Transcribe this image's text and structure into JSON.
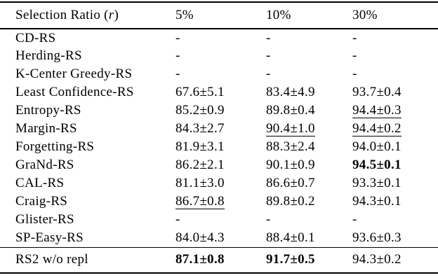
{
  "table": {
    "header": {
      "label_pre": "Selection Ratio (",
      "label_var": "r",
      "label_post": ")",
      "columns": [
        "5%",
        "10%",
        "30%"
      ]
    },
    "rows": [
      {
        "method": "CD-RS",
        "cells": [
          {
            "text": "-",
            "style": "normal"
          },
          {
            "text": "-",
            "style": "normal"
          },
          {
            "text": "-",
            "style": "normal"
          }
        ]
      },
      {
        "method": "Herding-RS",
        "cells": [
          {
            "text": "-",
            "style": "normal"
          },
          {
            "text": "-",
            "style": "normal"
          },
          {
            "text": "-",
            "style": "normal"
          }
        ]
      },
      {
        "method": "K-Center Greedy-RS",
        "cells": [
          {
            "text": "-",
            "style": "normal"
          },
          {
            "text": "-",
            "style": "normal"
          },
          {
            "text": "-",
            "style": "normal"
          }
        ]
      },
      {
        "method": "Least Confidence-RS",
        "cells": [
          {
            "text": "67.6±5.1",
            "style": "normal"
          },
          {
            "text": "83.4±4.9",
            "style": "normal"
          },
          {
            "text": "93.7±0.4",
            "style": "normal"
          }
        ]
      },
      {
        "method": "Entropy-RS",
        "cells": [
          {
            "text": "85.2±0.9",
            "style": "normal"
          },
          {
            "text": "89.8±0.4",
            "style": "normal"
          },
          {
            "text": "94.4±0.3",
            "style": "underline"
          }
        ]
      },
      {
        "method": "Margin-RS",
        "cells": [
          {
            "text": "84.3±2.7",
            "style": "normal"
          },
          {
            "text": "90.4±1.0",
            "style": "underline"
          },
          {
            "text": "94.4±0.2",
            "style": "underline"
          }
        ]
      },
      {
        "method": "Forgetting-RS",
        "cells": [
          {
            "text": "81.9±3.1",
            "style": "normal"
          },
          {
            "text": "88.3±2.4",
            "style": "normal"
          },
          {
            "text": "94.0±0.1",
            "style": "normal"
          }
        ]
      },
      {
        "method": "GraNd-RS",
        "cells": [
          {
            "text": "86.2±2.1",
            "style": "normal"
          },
          {
            "text": "90.1±0.9",
            "style": "normal"
          },
          {
            "text": "94.5±0.1",
            "style": "bold"
          }
        ]
      },
      {
        "method": "CAL-RS",
        "cells": [
          {
            "text": "81.1±3.0",
            "style": "normal"
          },
          {
            "text": "86.6±0.7",
            "style": "normal"
          },
          {
            "text": "93.3±0.1",
            "style": "normal"
          }
        ]
      },
      {
        "method": "Craig-RS",
        "cells": [
          {
            "text": "86.7±0.8",
            "style": "underline"
          },
          {
            "text": "89.8±0.2",
            "style": "normal"
          },
          {
            "text": "94.3±0.1",
            "style": "normal"
          }
        ]
      },
      {
        "method": "Glister-RS",
        "cells": [
          {
            "text": "-",
            "style": "normal"
          },
          {
            "text": "-",
            "style": "normal"
          },
          {
            "text": "-",
            "style": "normal"
          }
        ]
      },
      {
        "method": "SP-Easy-RS",
        "cells": [
          {
            "text": "84.0±4.3",
            "style": "normal"
          },
          {
            "text": "88.4±0.1",
            "style": "normal"
          },
          {
            "text": "93.6±0.3",
            "style": "normal"
          }
        ]
      }
    ],
    "footer_rows": [
      {
        "method": "RS2 w/o repl",
        "cells": [
          {
            "text": "87.1±0.8",
            "style": "bold"
          },
          {
            "text": "91.7±0.5",
            "style": "bold"
          },
          {
            "text": "94.3±0.2",
            "style": "normal"
          }
        ]
      }
    ]
  },
  "colors": {
    "text": "#000000",
    "background": "#ffffff",
    "rule": "#000000"
  }
}
